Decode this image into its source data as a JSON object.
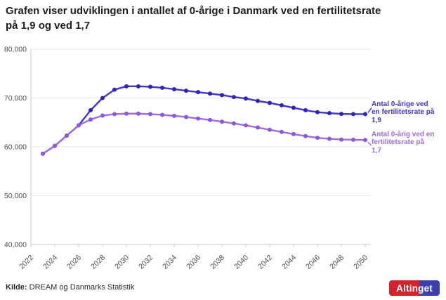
{
  "title": {
    "line1": "Grafen viser udviklingen i antallet af 0-årige i Danmark ved en fertilitetsrate",
    "line2": "på 1,9 og ved 1,7"
  },
  "source": {
    "label": "Kilde:",
    "text": " DREAM og Danmarks Statistik"
  },
  "logo": {
    "text": "Altinget",
    "red": "#d2232e",
    "blue": "#3b3fae"
  },
  "chart_data": {
    "type": "line",
    "x": [
      2023,
      2024,
      2025,
      2026,
      2027,
      2028,
      2029,
      2030,
      2031,
      2032,
      2033,
      2034,
      2035,
      2036,
      2037,
      2038,
      2039,
      2040,
      2041,
      2042,
      2043,
      2044,
      2045,
      2046,
      2047,
      2048,
      2049,
      2050
    ],
    "x_axis": {
      "ticks": [
        2022,
        2024,
        2026,
        2028,
        2030,
        2032,
        2034,
        2036,
        2038,
        2040,
        2042,
        2044,
        2046,
        2048,
        2050
      ],
      "range": [
        2022,
        2050
      ]
    },
    "y_axis": {
      "tick_values": [
        40000,
        50000,
        60000,
        70000,
        80000
      ],
      "tick_labels": [
        "40,000",
        "50,000",
        "60,000",
        "70,000",
        "80,000"
      ],
      "range": [
        40000,
        80000
      ]
    },
    "grid": true,
    "legend_position": "right",
    "series": [
      {
        "id": "1-9",
        "name": "Antal 0-årige ved en fertilitetsrate på 1,9",
        "label_lines": [
          "Antal 0-årige ved",
          "en fertilitetsrate på",
          "1,9"
        ],
        "color": "#4134cb",
        "dot_color": "#2f24b8",
        "values": [
          58600,
          60200,
          62300,
          64400,
          67500,
          70000,
          71700,
          72400,
          72400,
          72300,
          72100,
          71800,
          71500,
          71200,
          70900,
          70600,
          70200,
          69900,
          69400,
          69000,
          68500,
          68000,
          67500,
          67100,
          66900,
          66750,
          66700,
          66700
        ]
      },
      {
        "id": "1-7",
        "name": "Antal 0-årig ved en fertilitetsrate på 1,7",
        "label_lines": [
          "Antal 0-årig ved en",
          "fertilitetsrate på",
          "1,7"
        ],
        "color": "#9d6ce0",
        "dot_color": "#8d58d6",
        "values": [
          58600,
          60200,
          62300,
          64400,
          65600,
          66400,
          66700,
          66800,
          66800,
          66700,
          66550,
          66350,
          66100,
          65800,
          65500,
          65150,
          64800,
          64400,
          63950,
          63500,
          63050,
          62600,
          62200,
          61850,
          61650,
          61500,
          61450,
          61400
        ]
      }
    ],
    "axis_color": "#c9c9c9",
    "grid_color": "#e8e8e8",
    "tick_label_color": "#4d4d4d"
  }
}
